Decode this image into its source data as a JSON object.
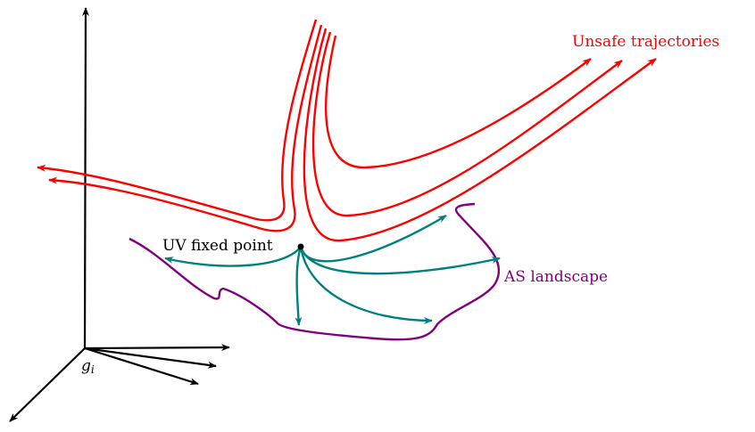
{
  "labels": {
    "unsafe": "Unsafe trajectories",
    "uv": "UV fixed point",
    "as": "AS landscape",
    "axis": "g",
    "axis_sub": "i"
  },
  "colors": {
    "unsafe": "#ff0000",
    "flow": "#008080",
    "landscape": "#800080",
    "axes": "#000000"
  }
}
